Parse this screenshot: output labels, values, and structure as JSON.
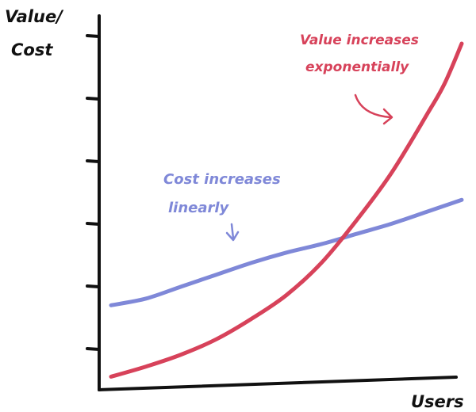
{
  "chart_data": {
    "type": "line",
    "ylabel": [
      "Value/",
      "Cost"
    ],
    "xlabel": "Users",
    "y_axis_ticks": 6,
    "xlim": [
      0,
      1
    ],
    "ylim": [
      0,
      1
    ],
    "grid": false,
    "series": [
      {
        "color": "#7f88d8",
        "x": [
          0.0,
          0.1,
          0.2,
          0.3,
          0.4,
          0.5,
          0.6,
          0.7,
          0.8,
          0.9,
          1.0
        ],
        "y": [
          0.23,
          0.25,
          0.285,
          0.32,
          0.355,
          0.385,
          0.41,
          0.44,
          0.47,
          0.505,
          0.54
        ]
      },
      {
        "color": "#d7425a",
        "x": [
          0.0,
          0.1,
          0.2,
          0.3,
          0.4,
          0.5,
          0.6,
          0.7,
          0.8,
          0.9,
          0.95,
          1.0
        ],
        "y": [
          0.02,
          0.05,
          0.085,
          0.13,
          0.19,
          0.26,
          0.355,
          0.48,
          0.62,
          0.79,
          0.88,
          1.0
        ]
      }
    ],
    "annotations": [
      {
        "lines": [
          "Value increases",
          "exponentially"
        ],
        "color": "#d7425a"
      },
      {
        "lines": [
          "Cost increases",
          "linearly"
        ],
        "color": "#7f88d8"
      }
    ]
  }
}
